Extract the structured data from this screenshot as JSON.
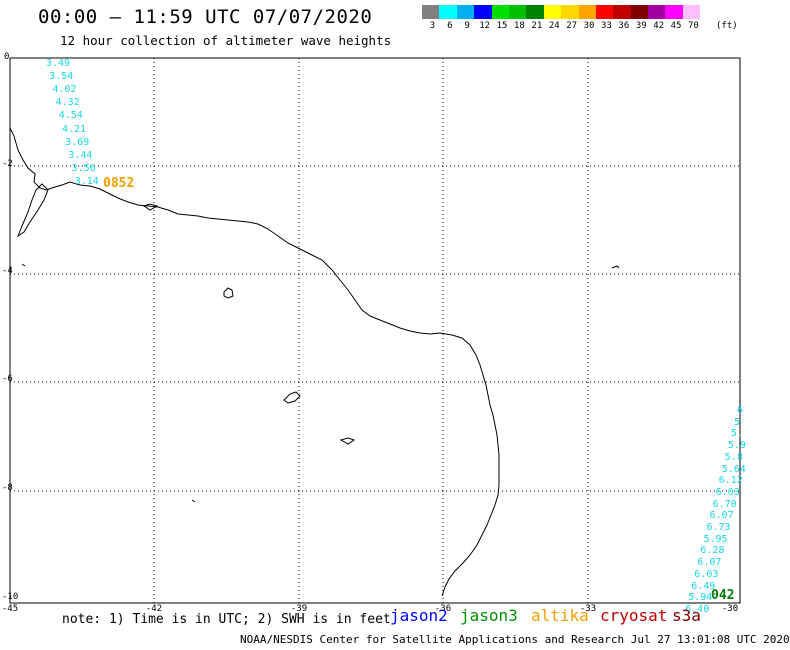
{
  "header": {
    "title": "00:00 – 11:59 UTC 07/07/2020",
    "subtitle": "12 hour collection of altimeter wave heights"
  },
  "legend": {
    "colors": [
      "#808080",
      "#00ffff",
      "#00b0f0",
      "#0000ff",
      "#00e000",
      "#00c000",
      "#008000",
      "#ffff00",
      "#ffd700",
      "#ffa500",
      "#ff0000",
      "#c00000",
      "#800000",
      "#a000a0",
      "#ff00ff",
      "#ffc0ff"
    ],
    "labels": [
      "3",
      "6",
      "9",
      "12",
      "15",
      "18",
      "21",
      "24",
      "27",
      "30",
      "33",
      "36",
      "39",
      "42",
      "45",
      "70"
    ],
    "unit": "(ft)"
  },
  "axes": {
    "y_labels": [
      "0",
      "-2",
      "-4",
      "-6",
      "-8",
      "-10"
    ],
    "x_labels": [
      "-45",
      "-42",
      "-39",
      "-36",
      "-33",
      "-30"
    ]
  },
  "tracks": {
    "pass_a": {
      "label": "0852",
      "color": "#f0a000",
      "values": [
        "3.49",
        "3.54",
        "4.02",
        "4.32",
        "4.54",
        "4.21",
        "3.69",
        "3.44",
        "3.56",
        "3.14"
      ]
    },
    "pass_b": {
      "label": "042",
      "color": "#008000",
      "values": [
        "6",
        "5",
        "5.",
        "5.9",
        "5.8",
        "5.64",
        "6.12",
        "6.03",
        "6.70",
        "6.07",
        "6.73",
        "5.95",
        "6.28",
        "6.07",
        "6.03",
        "6.49",
        "5.94",
        "6.40"
      ]
    }
  },
  "note": "note: 1) Time is in UTC; 2) SWH is in feet",
  "satellites": [
    {
      "name": "jason2",
      "color": "#0000ff"
    },
    {
      "name": "jason3",
      "color": "#009000"
    },
    {
      "name": "altika",
      "color": "#f0a000"
    },
    {
      "name": "cryosat",
      "color": "#c00000"
    },
    {
      "name": "s3a",
      "color": "#800000"
    }
  ],
  "footer": "NOAA/NESDIS Center for Satellite Applications and Research   Jul 27 13:01:08 UTC 2020"
}
